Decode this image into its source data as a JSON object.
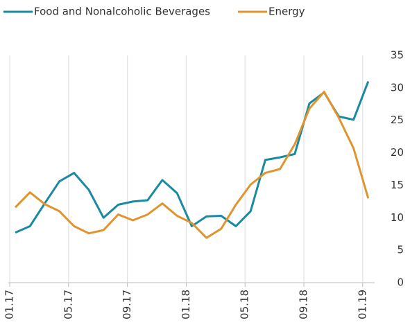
{
  "chart_data": {
    "type": "line",
    "categories": [
      "01.17",
      null,
      null,
      null,
      "05.17",
      null,
      null,
      null,
      "09.17",
      null,
      null,
      null,
      "01.18",
      null,
      null,
      null,
      "05.18",
      null,
      null,
      null,
      "09.18",
      null,
      null,
      null,
      "01.19"
    ],
    "series": [
      {
        "name": "Food and Nonalcoholic Beverages",
        "color": "#1a8aa0",
        "values": [
          7.7,
          8.7,
          12.2,
          15.6,
          16.9,
          14.3,
          10.0,
          12.0,
          12.5,
          12.7,
          15.8,
          13.8,
          8.7,
          10.2,
          10.3,
          8.7,
          11.0,
          18.9,
          19.3,
          19.8,
          27.6,
          29.3,
          25.6,
          25.1,
          31.0
        ]
      },
      {
        "name": "Energy",
        "color": "#e0942f",
        "values": [
          11.6,
          13.9,
          12.1,
          11.0,
          8.7,
          7.6,
          8.1,
          10.5,
          9.6,
          10.5,
          12.2,
          10.3,
          9.2,
          6.9,
          8.3,
          12.0,
          15.1,
          16.9,
          17.5,
          21.3,
          26.8,
          29.4,
          25.4,
          20.7,
          13.0
        ]
      }
    ],
    "ylim": [
      0,
      35
    ],
    "yticks": [
      0,
      5,
      10,
      15,
      20,
      25,
      30,
      35
    ],
    "y_axis_side": "right",
    "grid": "x",
    "legend": "top"
  }
}
